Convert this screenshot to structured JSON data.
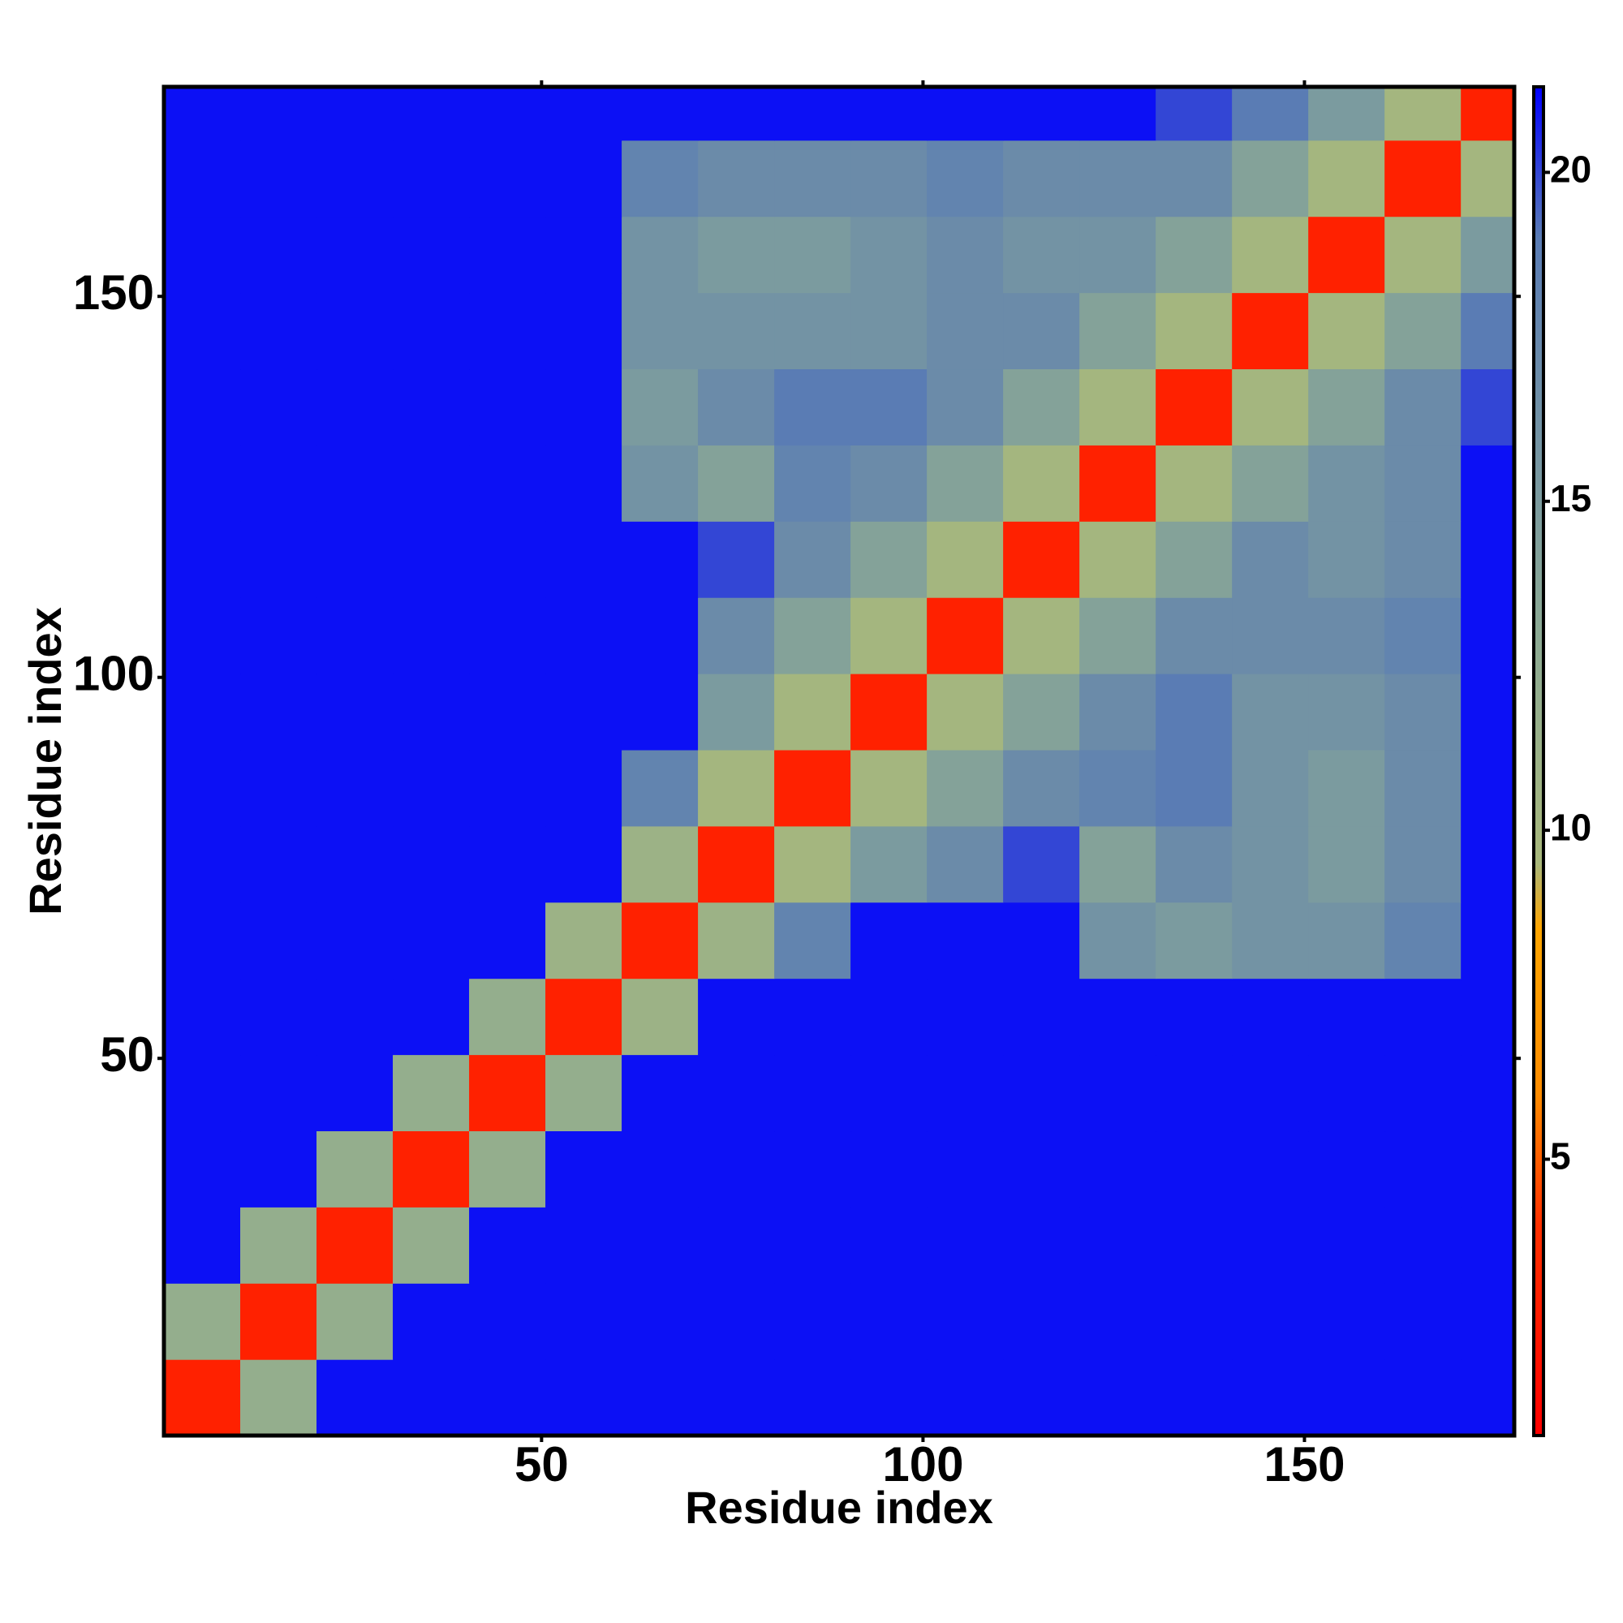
{
  "chart_data": {
    "type": "heatmap",
    "xlabel": "Residue index",
    "ylabel": "Residue index",
    "x_edges": [
      0.5,
      10.5,
      20.5,
      30.5,
      40.5,
      50.5,
      60.5,
      70.5,
      80.5,
      90.5,
      100.5,
      110.5,
      120.5,
      130.5,
      140.5,
      150.5,
      160.5,
      170.5,
      177.5
    ],
    "y_edges": [
      0.5,
      10.5,
      20.5,
      30.5,
      40.5,
      50.5,
      60.5,
      70.5,
      80.5,
      90.5,
      100.5,
      110.5,
      120.5,
      130.5,
      140.5,
      150.5,
      160.5,
      170.5,
      177.5
    ],
    "z": [
      [
        3,
        12,
        21,
        21,
        21,
        21,
        21,
        21,
        21,
        21,
        21,
        21,
        21,
        21,
        21,
        21,
        21,
        21
      ],
      [
        12,
        3,
        12,
        21,
        21,
        21,
        21,
        21,
        21,
        21,
        21,
        21,
        21,
        21,
        21,
        21,
        21,
        21
      ],
      [
        21,
        12,
        3,
        12,
        21,
        21,
        21,
        21,
        21,
        21,
        21,
        21,
        21,
        21,
        21,
        21,
        21,
        21
      ],
      [
        21,
        21,
        12,
        3,
        12,
        21,
        21,
        21,
        21,
        21,
        21,
        21,
        21,
        21,
        21,
        21,
        21,
        21
      ],
      [
        21,
        21,
        21,
        12,
        3,
        12,
        21,
        21,
        21,
        21,
        21,
        21,
        21,
        21,
        21,
        21,
        21,
        21
      ],
      [
        21,
        21,
        21,
        21,
        12,
        3,
        11,
        21,
        21,
        21,
        21,
        21,
        21,
        21,
        21,
        21,
        21,
        21
      ],
      [
        21,
        21,
        21,
        21,
        21,
        11,
        3,
        11,
        18,
        21,
        21,
        21,
        16,
        15,
        16,
        16,
        18,
        21
      ],
      [
        21,
        21,
        21,
        21,
        21,
        21,
        11,
        3,
        10,
        15,
        17,
        20,
        14,
        17,
        16,
        15,
        17,
        21
      ],
      [
        21,
        21,
        21,
        21,
        21,
        21,
        18,
        10,
        3,
        10,
        14,
        17,
        18,
        19,
        16,
        15,
        17,
        21
      ],
      [
        21,
        21,
        21,
        21,
        21,
        21,
        21,
        15,
        10,
        3,
        10,
        14,
        17,
        19,
        16,
        16,
        17,
        21
      ],
      [
        21,
        21,
        21,
        21,
        21,
        21,
        21,
        17,
        14,
        10,
        3,
        10,
        14,
        17,
        17,
        17,
        18,
        21
      ],
      [
        21,
        21,
        21,
        21,
        21,
        21,
        21,
        20,
        17,
        14,
        10,
        3,
        10,
        14,
        17,
        16,
        17,
        21
      ],
      [
        21,
        21,
        21,
        21,
        21,
        21,
        16,
        14,
        18,
        17,
        14,
        10,
        3,
        10,
        14,
        16,
        17,
        21
      ],
      [
        21,
        21,
        21,
        21,
        21,
        21,
        15,
        17,
        19,
        19,
        17,
        14,
        10,
        3,
        10,
        14,
        17,
        20
      ],
      [
        21,
        21,
        21,
        21,
        21,
        21,
        16,
        16,
        16,
        16,
        17,
        17,
        14,
        10,
        3,
        10,
        14,
        19
      ],
      [
        21,
        21,
        21,
        21,
        21,
        21,
        16,
        15,
        15,
        16,
        17,
        16,
        16,
        14,
        10,
        3,
        10,
        15
      ],
      [
        21,
        21,
        21,
        21,
        21,
        21,
        18,
        17,
        17,
        17,
        18,
        17,
        17,
        17,
        14,
        10,
        3,
        10
      ],
      [
        21,
        21,
        21,
        21,
        21,
        21,
        21,
        21,
        21,
        21,
        21,
        21,
        21,
        20,
        19,
        15,
        10,
        3
      ]
    ],
    "xlim": [
      0.5,
      177.5
    ],
    "ylim": [
      0.5,
      177.5
    ],
    "xticks": [
      50,
      100,
      150
    ],
    "yticks": [
      50,
      100,
      150
    ],
    "colorbar": {
      "lim": [
        0.8,
        21.3
      ],
      "ticks": [
        5,
        10,
        15,
        20
      ],
      "colorscale": [
        [
          0.8,
          "#ff0000"
        ],
        [
          4,
          "#ff3000"
        ],
        [
          6,
          "#ff8c00"
        ],
        [
          8.5,
          "#ffa500"
        ],
        [
          9.5,
          "#a8b87c"
        ],
        [
          13,
          "#8caa94"
        ],
        [
          19,
          "#5a7cb4"
        ],
        [
          21.3,
          "#0000ff"
        ]
      ]
    }
  }
}
